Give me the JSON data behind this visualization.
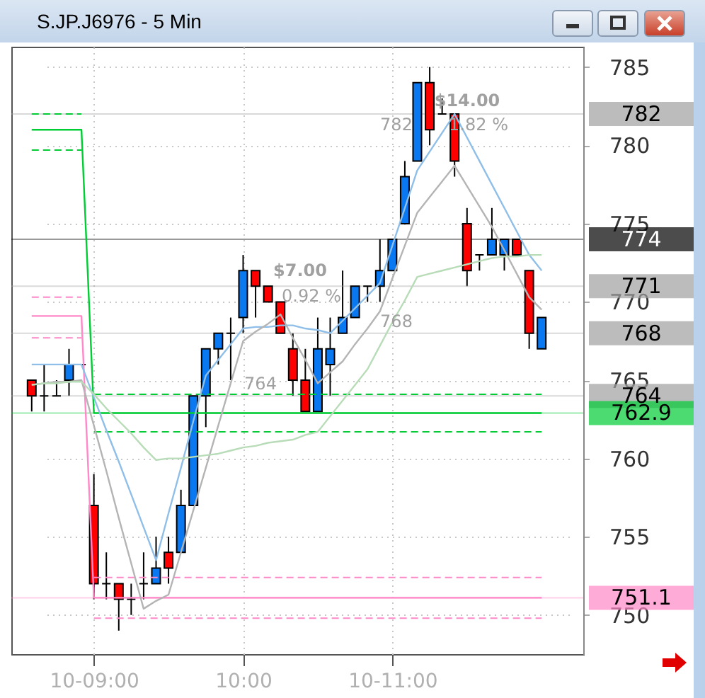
{
  "chart_data": {
    "type": "candlestick",
    "title": "S.JP.J6976 - 5 Min",
    "categories": [
      null,
      null,
      null,
      null,
      null,
      "10-09:00",
      null,
      null,
      null,
      null,
      null,
      null,
      null,
      null,
      null,
      null,
      null,
      "10:00",
      null,
      null,
      null,
      null,
      null,
      null,
      null,
      null,
      null,
      null,
      null,
      "10-11:00",
      null,
      null,
      null,
      null,
      null,
      null,
      null,
      null,
      null,
      null,
      null,
      null
    ],
    "ohlc": [
      [
        765,
        765,
        763,
        764
      ],
      [
        764,
        766,
        763,
        764
      ],
      [
        764,
        765,
        764,
        764
      ],
      [
        765,
        767,
        764,
        766
      ],
      [
        766,
        766,
        766,
        766
      ],
      [
        757,
        759,
        751,
        752
      ],
      [
        752,
        754,
        751,
        752
      ],
      [
        752,
        752,
        749,
        751
      ],
      [
        751,
        752,
        750,
        751
      ],
      [
        752,
        754,
        751,
        752
      ],
      [
        752,
        755,
        752,
        753
      ],
      [
        754,
        755,
        752,
        753
      ],
      [
        754,
        758,
        754,
        757
      ],
      [
        757,
        764,
        757,
        764
      ],
      [
        764,
        767,
        762,
        767
      ],
      [
        767,
        768,
        766,
        768
      ],
      [
        768,
        769,
        765,
        768
      ],
      [
        769,
        773,
        768,
        772
      ],
      [
        772,
        772,
        769,
        771
      ],
      [
        771,
        771,
        770,
        770
      ],
      [
        770,
        770,
        768,
        768
      ],
      [
        767,
        768,
        764,
        765
      ],
      [
        765,
        767,
        763,
        763
      ],
      [
        763,
        769,
        763,
        767
      ],
      [
        766,
        769,
        764,
        767
      ],
      [
        768,
        772,
        768,
        769
      ],
      [
        769,
        771,
        769,
        771
      ],
      [
        771,
        771,
        770,
        771
      ],
      [
        771,
        774,
        770,
        772
      ],
      [
        772,
        774,
        772,
        774
      ],
      [
        775,
        779,
        775,
        778
      ],
      [
        779,
        784,
        779,
        784
      ],
      [
        784,
        785,
        780,
        781
      ],
      [
        782,
        783,
        782,
        782
      ],
      [
        782,
        782,
        778,
        779
      ],
      [
        775,
        776,
        771,
        772
      ],
      [
        773,
        773,
        772,
        773
      ],
      [
        773,
        776,
        773,
        774
      ],
      [
        773,
        774,
        772,
        774
      ],
      [
        774,
        774,
        773,
        773
      ],
      [
        772,
        772,
        767,
        768
      ],
      [
        767,
        769,
        767,
        769
      ]
    ],
    "colors": [
      "#ff0000",
      "#000000",
      "#000000",
      "#0a78f0",
      "#000000",
      "#ff0000",
      "#000000",
      "#ff0000",
      "#000000",
      "#000000",
      "#0a78f0",
      "#ff0000",
      "#0a78f0",
      "#0a78f0",
      "#0a78f0",
      "#0a78f0",
      "#000000",
      "#0a78f0",
      "#ff0000",
      "#ff0000",
      "#ff0000",
      "#ff0000",
      "#ff0000",
      "#0a78f0",
      "#0a78f0",
      "#0a78f0",
      "#0a78f0",
      "#000000",
      "#0a78f0",
      "#0a78f0",
      "#0a78f0",
      "#0a78f0",
      "#ff0000",
      "#000000",
      "#ff0000",
      "#ff0000",
      "#000000",
      "#0a78f0",
      "#0a78f0",
      "#ff0000",
      "#ff0000",
      "#0a78f0"
    ],
    "series": [
      {
        "type": "line",
        "color": "#00cc33",
        "values": [
          781,
          781,
          781,
          781,
          781,
          762.9,
          762.9,
          762.9,
          762.9,
          762.9,
          762.9,
          762.9,
          762.9,
          762.9,
          762.9,
          762.9,
          762.9,
          762.9,
          762.9,
          762.9,
          762.9,
          762.9,
          762.9,
          762.9,
          762.9,
          762.9,
          762.9,
          762.9,
          762.9,
          762.9,
          762.9,
          762.9,
          762.9,
          762.9,
          762.9,
          762.9,
          762.9,
          762.9,
          762.9,
          762.9,
          762.9,
          762.9
        ]
      },
      {
        "type": "line",
        "color": "#00cc33",
        "line_style": "dashed",
        "values": [
          782,
          782,
          782,
          782,
          782,
          null,
          null,
          null,
          null,
          null,
          null,
          null,
          null,
          null,
          null,
          null,
          null,
          null,
          null,
          null,
          null,
          null,
          null,
          null,
          null,
          null,
          null,
          null,
          null,
          null,
          null,
          null,
          null,
          null,
          null,
          null,
          null,
          null,
          null,
          null,
          null,
          null
        ]
      },
      {
        "type": "line",
        "color": "#00cc33",
        "line_style": "dashed",
        "values": [
          779.7,
          779.7,
          779.7,
          779.7,
          779.7,
          null,
          null,
          null,
          null,
          null,
          null,
          null,
          null,
          null,
          null,
          null,
          null,
          null,
          null,
          null,
          null,
          null,
          null,
          null,
          null,
          null,
          null,
          null,
          null,
          null,
          null,
          null,
          null,
          null,
          null,
          null,
          null,
          null,
          null,
          null,
          null,
          null
        ]
      },
      {
        "type": "line",
        "color": "#00cc33",
        "line_style": "dashed",
        "values": [
          null,
          null,
          null,
          null,
          null,
          764.1,
          764.1,
          764.1,
          764.1,
          764.1,
          764.1,
          764.1,
          764.1,
          764.1,
          764.1,
          764.1,
          764.1,
          764.1,
          764.1,
          764.1,
          764.1,
          764.1,
          764.1,
          764.1,
          764.1,
          764.1,
          764.1,
          764.1,
          764.1,
          764.1,
          764.1,
          764.1,
          764.1,
          764.1,
          764.1,
          764.1,
          764.1,
          764.1,
          764.1,
          764.1,
          764.1,
          764.1
        ]
      },
      {
        "type": "line",
        "color": "#00cc33",
        "line_style": "dashed",
        "values": [
          null,
          null,
          null,
          null,
          null,
          761.7,
          761.7,
          761.7,
          761.7,
          761.7,
          761.7,
          761.7,
          761.7,
          761.7,
          761.7,
          761.7,
          761.7,
          761.7,
          761.7,
          761.7,
          761.7,
          761.7,
          761.7,
          761.7,
          761.7,
          761.7,
          761.7,
          761.7,
          761.7,
          761.7,
          761.7,
          761.7,
          761.7,
          761.7,
          761.7,
          761.7,
          761.7,
          761.7,
          761.7,
          761.7,
          761.7,
          761.7
        ]
      },
      {
        "type": "line",
        "color": "#ff88c8",
        "values": [
          769.1,
          769.1,
          769.1,
          769.1,
          769.1,
          751.1,
          751.1,
          751.1,
          751.1,
          751.1,
          751.1,
          751.1,
          751.1,
          751.1,
          751.1,
          751.1,
          751.1,
          751.1,
          751.1,
          751.1,
          751.1,
          751.1,
          751.1,
          751.1,
          751.1,
          751.1,
          751.1,
          751.1,
          751.1,
          751.1,
          751.1,
          751.1,
          751.1,
          751.1,
          751.1,
          751.1,
          751.1,
          751.1,
          751.1,
          751.1,
          751.1,
          751.1
        ]
      },
      {
        "type": "line",
        "color": "#ff88c8",
        "line_style": "dashed",
        "values": [
          770.3,
          770.3,
          770.3,
          770.3,
          770.3,
          null,
          null,
          null,
          null,
          null,
          null,
          null,
          null,
          null,
          null,
          null,
          null,
          null,
          null,
          null,
          null,
          null,
          null,
          null,
          null,
          null,
          null,
          null,
          null,
          null,
          null,
          null,
          null,
          null,
          null,
          null,
          null,
          null,
          null,
          null,
          null,
          null
        ]
      },
      {
        "type": "line",
        "color": "#ff88c8",
        "line_style": "dashed",
        "values": [
          767.7,
          767.7,
          767.7,
          767.7,
          767.7,
          null,
          null,
          null,
          null,
          null,
          null,
          null,
          null,
          null,
          null,
          null,
          null,
          null,
          null,
          null,
          null,
          null,
          null,
          null,
          null,
          null,
          null,
          null,
          null,
          null,
          null,
          null,
          null,
          null,
          null,
          null,
          null,
          null,
          null,
          null,
          null,
          null
        ]
      },
      {
        "type": "line",
        "color": "#ff88c8",
        "line_style": "dashed",
        "values": [
          null,
          null,
          null,
          null,
          null,
          752.4,
          752.4,
          752.4,
          752.4,
          752.4,
          752.4,
          752.4,
          752.4,
          752.4,
          752.4,
          752.4,
          752.4,
          752.4,
          752.4,
          752.4,
          752.4,
          752.4,
          752.4,
          752.4,
          752.4,
          752.4,
          752.4,
          752.4,
          752.4,
          752.4,
          752.4,
          752.4,
          752.4,
          752.4,
          752.4,
          752.4,
          752.4,
          752.4,
          752.4,
          752.4,
          752.4,
          752.4
        ]
      },
      {
        "type": "line",
        "color": "#ff88c8",
        "line_style": "dashed",
        "values": [
          null,
          null,
          null,
          null,
          null,
          749.8,
          749.8,
          749.8,
          749.8,
          749.8,
          749.8,
          749.8,
          749.8,
          749.8,
          749.8,
          749.8,
          749.8,
          749.8,
          749.8,
          749.8,
          749.8,
          749.8,
          749.8,
          749.8,
          749.8,
          749.8,
          749.8,
          749.8,
          749.8,
          749.8,
          749.8,
          749.8,
          749.8,
          749.8,
          749.8,
          749.8,
          749.8,
          749.8,
          749.8,
          749.8,
          749.8,
          749.8
        ]
      },
      {
        "type": "line",
        "color": "#8fbfe8",
        "values": [
          766,
          766,
          766,
          766,
          766,
          763.9,
          761.8,
          759.8,
          757.7,
          755.6,
          753.5,
          756.5,
          759.4,
          762.4,
          765.3,
          766.3,
          767.3,
          768.3,
          768.4,
          768.4,
          768.5,
          768.5,
          768.3,
          768.2,
          768,
          768.8,
          769.6,
          770.4,
          771.2,
          773.6,
          776,
          778.4,
          779.6,
          780.8,
          782,
          780.5,
          779,
          777.5,
          776,
          774.5,
          773,
          772
        ]
      },
      {
        "type": "line",
        "color": "#b4b4b4",
        "values": [
          764.7,
          764.8,
          764.9,
          764.9,
          765,
          762.1,
          759.2,
          756.2,
          753.3,
          750.4,
          750.9,
          751.3,
          754,
          756.7,
          759.4,
          762.1,
          764.8,
          767.5,
          768.1,
          768.6,
          769.2,
          767.7,
          766.3,
          764.8,
          765.5,
          766.2,
          767.3,
          768.3,
          769.4,
          771.5,
          773.6,
          775.7,
          776.7,
          777.7,
          778.7,
          777.4,
          776.1,
          774.8,
          773.3,
          771.8,
          770.3,
          769.5
        ]
      },
      {
        "type": "line",
        "color": "#b8dcb8",
        "values": [
          764.7,
          764.8,
          764.8,
          764.9,
          764.9,
          764.1,
          763.2,
          762.4,
          761.6,
          760.7,
          759.9,
          760,
          760,
          760.1,
          760.2,
          760.3,
          760.5,
          760.7,
          760.8,
          761,
          761.1,
          761.2,
          761.5,
          761.7,
          762.7,
          763.7,
          764.7,
          765.7,
          767.2,
          768.7,
          770.1,
          771.6,
          771.8,
          772,
          772.2,
          772.4,
          772.6,
          772.8,
          772.9,
          772.9,
          773,
          773
        ]
      }
    ],
    "ref_lines": [
      {
        "axis": "y",
        "value": 782,
        "label": "782",
        "color": "#a0a0a0"
      },
      {
        "axis": "y",
        "value": 774,
        "label": "774",
        "color": "#000000"
      },
      {
        "axis": "y",
        "value": 771,
        "label": "771",
        "color": "#a0a0a0"
      },
      {
        "axis": "y",
        "value": 768,
        "label": "768",
        "color": "#a0a0a0"
      },
      {
        "axis": "y",
        "value": 764,
        "label": "764",
        "color": "#a0a0a0"
      },
      {
        "axis": "y",
        "value": 762.9,
        "label": "762.9",
        "color": "#00cc33"
      },
      {
        "axis": "y",
        "value": 751.1,
        "label": "751.1",
        "color": "#ff88c8"
      }
    ],
    "annotations": [
      "$7.00",
      "0.92 %",
      "764",
      "$14.00",
      "1.82 %",
      "782",
      "768"
    ],
    "ylim": [
      747.5,
      786.3
    ],
    "yticks": [
      750,
      755,
      760,
      765,
      770,
      775,
      780,
      785
    ],
    "grid": true
  }
}
